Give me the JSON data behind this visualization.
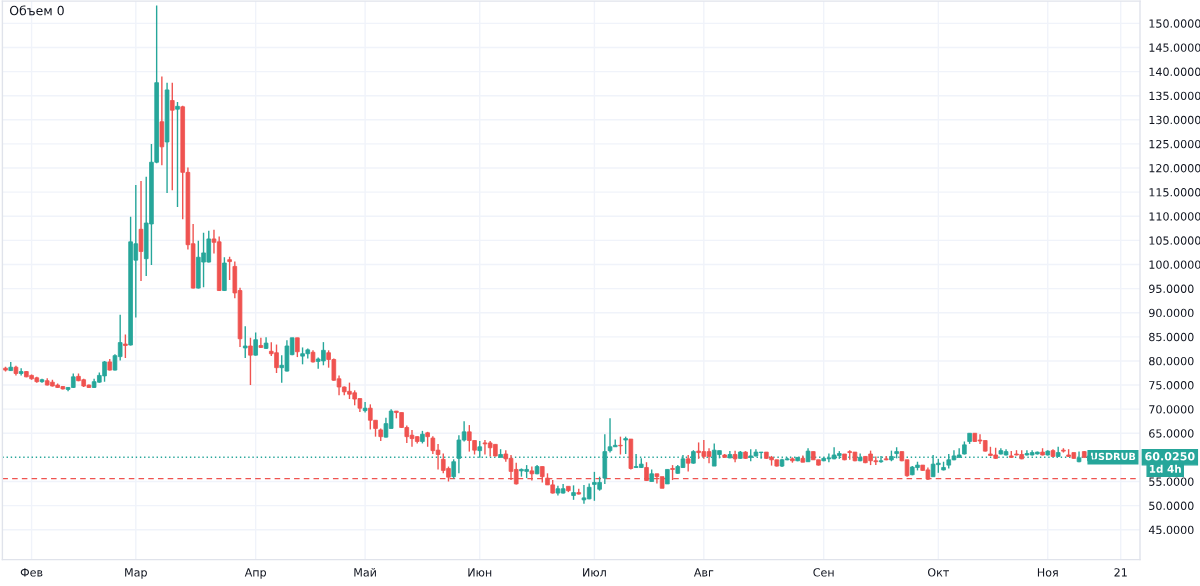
{
  "chart_data": {
    "type": "candlestick",
    "categories": [
      null,
      null,
      null,
      null,
      null,
      "Фев",
      null,
      null,
      null,
      null,
      null,
      null,
      null,
      null,
      null,
      null,
      null,
      null,
      null,
      null,
      null,
      null,
      null,
      null,
      null,
      "Мар",
      null,
      null,
      null,
      null,
      null,
      null,
      null,
      null,
      null,
      null,
      null,
      null,
      null,
      null,
      null,
      null,
      null,
      null,
      null,
      null,
      null,
      null,
      "Апр",
      null,
      null,
      null,
      null,
      null,
      null,
      null,
      null,
      null,
      null,
      null,
      null,
      null,
      null,
      null,
      null,
      null,
      null,
      null,
      null,
      "Май",
      null,
      null,
      null,
      null,
      null,
      null,
      null,
      null,
      null,
      null,
      null,
      null,
      null,
      null,
      null,
      null,
      null,
      null,
      null,
      null,
      null,
      "Июн",
      null,
      null,
      null,
      null,
      null,
      null,
      null,
      null,
      null,
      null,
      null,
      null,
      null,
      null,
      null,
      null,
      null,
      null,
      null,
      null,
      null,
      "Июл",
      null,
      null,
      null,
      null,
      null,
      null,
      null,
      null,
      null,
      null,
      null,
      null,
      null,
      null,
      null,
      null,
      null,
      null,
      null,
      null,
      "Авг",
      null,
      null,
      null,
      null,
      null,
      null,
      null,
      null,
      null,
      null,
      null,
      null,
      null,
      null,
      null,
      null,
      null,
      null,
      null,
      null,
      null,
      null,
      "Сен",
      null,
      null,
      null,
      null,
      null,
      null,
      null,
      null,
      null,
      null,
      null,
      null,
      null,
      null,
      null,
      null,
      null,
      null,
      null,
      null,
      null,
      "Окт",
      null,
      null,
      null,
      null,
      null,
      null,
      null,
      null,
      null,
      null,
      null,
      null,
      null,
      null,
      null,
      null,
      null,
      null,
      null,
      null,
      "Ноя",
      null,
      null,
      null,
      null,
      null,
      null,
      null,
      null,
      null,
      null,
      null,
      null,
      null,
      "21"
    ],
    "ohlc": [
      [
        78.5,
        78.8,
        77.8,
        78.1
      ],
      [
        78.0,
        79.8,
        77.9,
        78.7
      ],
      [
        78.7,
        79.0,
        77.0,
        77.4
      ],
      [
        77.4,
        78.5,
        77.0,
        77.8
      ],
      [
        77.8,
        77.9,
        76.6,
        76.7
      ],
      [
        77.0,
        77.2,
        76.1,
        76.3
      ],
      [
        76.5,
        76.7,
        75.5,
        75.7
      ],
      [
        75.7,
        76.3,
        75.5,
        76.1
      ],
      [
        75.9,
        76.4,
        74.9,
        75.0
      ],
      [
        75.6,
        76.1,
        74.7,
        74.8
      ],
      [
        75.0,
        75.3,
        74.4,
        74.5
      ],
      [
        74.7,
        74.8,
        74.1,
        74.2
      ],
      [
        74.1,
        74.6,
        73.7,
        74.5
      ],
      [
        74.5,
        77.4,
        74.4,
        76.7
      ],
      [
        76.8,
        77.4,
        75.8,
        75.9
      ],
      [
        76.1,
        76.3,
        74.6,
        74.8
      ],
      [
        75.0,
        75.1,
        74.4,
        74.5
      ],
      [
        74.5,
        76.3,
        74.4,
        75.7
      ],
      [
        75.6,
        77.6,
        75.5,
        77.0
      ],
      [
        76.9,
        80.0,
        75.7,
        79.8
      ],
      [
        79.8,
        80.4,
        78.0,
        78.1
      ],
      [
        78.1,
        81.4,
        78.0,
        81.1
      ],
      [
        80.9,
        89.6,
        80.1,
        83.8
      ],
      [
        83.5,
        85.5,
        80.6,
        83.2
      ],
      [
        83.3,
        109.9,
        83.2,
        104.7
      ],
      [
        100.9,
        116.5,
        89.0,
        104.3
      ],
      [
        107.3,
        117.3,
        96.6,
        102.7
      ],
      [
        101.2,
        118.2,
        97.6,
        108.6
      ],
      [
        108.4,
        125.0,
        99.9,
        121.2
      ],
      [
        121.2,
        153.7,
        121.0,
        137.7
      ],
      [
        129.6,
        139.0,
        120.6,
        124.4
      ],
      [
        125.4,
        137.7,
        114.8,
        136.2
      ],
      [
        134.0,
        137.7,
        115.4,
        132.0
      ],
      [
        132.2,
        133.7,
        111.9,
        132.8
      ],
      [
        132.7,
        132.9,
        109.4,
        119.1
      ],
      [
        119.1,
        120.1,
        103.1,
        104.1
      ],
      [
        104.3,
        108.4,
        95.0,
        95.1
      ],
      [
        95.1,
        104.9,
        95.0,
        101.5
      ],
      [
        100.5,
        106.6,
        95.3,
        102.4
      ],
      [
        100.5,
        107.0,
        100.4,
        105.3
      ],
      [
        105.3,
        107.2,
        102.3,
        104.6
      ],
      [
        104.7,
        105.8,
        94.5,
        94.6
      ],
      [
        94.6,
        101.5,
        94.5,
        100.3
      ],
      [
        101.0,
        101.6,
        96.8,
        100.6
      ],
      [
        99.6,
        100.6,
        93.0,
        94.1
      ],
      [
        94.6,
        95.2,
        82.9,
        84.6
      ],
      [
        82.7,
        87.2,
        80.6,
        83.1
      ],
      [
        83.1,
        84.8,
        75.0,
        81.2
      ],
      [
        81.2,
        85.9,
        81.1,
        84.4
      ],
      [
        83.2,
        84.8,
        82.7,
        82.8
      ],
      [
        82.6,
        84.9,
        82.5,
        83.7
      ],
      [
        82.0,
        83.9,
        81.0,
        81.5
      ],
      [
        81.7,
        83.4,
        77.5,
        78.6
      ],
      [
        78.6,
        81.2,
        75.5,
        79.1
      ],
      [
        77.9,
        84.3,
        77.8,
        83.1
      ],
      [
        81.3,
        84.8,
        81.2,
        84.8
      ],
      [
        84.8,
        84.8,
        80.8,
        81.9
      ],
      [
        81.0,
        82.8,
        79.3,
        81.5
      ],
      [
        81.5,
        82.6,
        80.5,
        82.3
      ],
      [
        81.8,
        82.2,
        79.7,
        79.8
      ],
      [
        79.9,
        80.7,
        78.4,
        80.4
      ],
      [
        80.0,
        83.9,
        79.1,
        82.2
      ],
      [
        81.7,
        82.2,
        78.6,
        80.3
      ],
      [
        80.3,
        80.5,
        75.9,
        76.0
      ],
      [
        76.3,
        77.0,
        72.9,
        74.6
      ],
      [
        74.6,
        74.7,
        72.9,
        73.6
      ],
      [
        73.7,
        75.5,
        72.1,
        73.1
      ],
      [
        73.4,
        73.9,
        70.8,
        72.1
      ],
      [
        72.2,
        72.2,
        69.4,
        70.2
      ],
      [
        69.7,
        71.5,
        69.3,
        70.2
      ],
      [
        70.2,
        71.0,
        65.8,
        67.7
      ],
      [
        67.7,
        67.7,
        64.3,
        66.0
      ],
      [
        65.7,
        66.0,
        63.4,
        64.3
      ],
      [
        64.2,
        68.2,
        64.1,
        67.0
      ],
      [
        66.0,
        70.0,
        66.0,
        69.6
      ],
      [
        69.6,
        69.6,
        68.1,
        69.3
      ],
      [
        69.3,
        69.3,
        66.1,
        66.2
      ],
      [
        66.2,
        66.6,
        63.0,
        64.3
      ],
      [
        64.6,
        65.7,
        62.2,
        63.9
      ],
      [
        64.3,
        64.4,
        62.9,
        63.3
      ],
      [
        63.3,
        65.5,
        62.9,
        64.8
      ],
      [
        65.1,
        65.3,
        62.2,
        64.3
      ],
      [
        64.0,
        64.4,
        60.7,
        61.4
      ],
      [
        61.5,
        62.8,
        57.5,
        60.6
      ],
      [
        59.6,
        60.8,
        56.7,
        57.3
      ],
      [
        57.7,
        58.1,
        55.0,
        55.9
      ],
      [
        56.0,
        59.6,
        55.6,
        59.1
      ],
      [
        59.8,
        64.6,
        56.7,
        63.6
      ],
      [
        63.6,
        67.5,
        63.3,
        65.3
      ],
      [
        65.3,
        66.7,
        61.2,
        63.5
      ],
      [
        63.5,
        63.5,
        60.6,
        61.5
      ],
      [
        61.4,
        63.4,
        59.9,
        62.2
      ],
      [
        63.0,
        63.6,
        60.6,
        62.8
      ],
      [
        63.0,
        63.4,
        60.2,
        62.0
      ],
      [
        62.7,
        62.7,
        60.2,
        60.3
      ],
      [
        60.0,
        61.7,
        60.0,
        60.6
      ],
      [
        60.7,
        61.5,
        59.1,
        59.7
      ],
      [
        59.8,
        60.5,
        55.3,
        57.1
      ],
      [
        57.5,
        58.9,
        54.4,
        54.5
      ],
      [
        57.2,
        57.7,
        56.0,
        57.5
      ],
      [
        57.1,
        58.4,
        55.7,
        57.5
      ],
      [
        57.2,
        58.1,
        55.2,
        56.6
      ],
      [
        56.6,
        58.4,
        56.5,
        58.1
      ],
      [
        58.1,
        58.1,
        54.8,
        56.0
      ],
      [
        55.7,
        56.7,
        54.3,
        54.3
      ],
      [
        54.3,
        55.3,
        52.5,
        52.6
      ],
      [
        52.6,
        54.1,
        52.1,
        53.5
      ],
      [
        52.6,
        54.5,
        52.5,
        53.5
      ],
      [
        54.0,
        54.0,
        52.8,
        53.1
      ],
      [
        52.1,
        54.2,
        51.2,
        52.7
      ],
      [
        52.7,
        53.5,
        52.3,
        52.4
      ],
      [
        51.2,
        54.3,
        50.4,
        51.6
      ],
      [
        51.4,
        54.6,
        51.3,
        53.8
      ],
      [
        54.4,
        57.0,
        51.0,
        54.8
      ],
      [
        53.4,
        56.0,
        53.1,
        54.8
      ],
      [
        55.7,
        64.8,
        54.5,
        61.2
      ],
      [
        61.4,
        68.1,
        61.0,
        62.2
      ],
      [
        62.2,
        63.7,
        62.2,
        62.5
      ],
      [
        62.5,
        64.3,
        60.6,
        62.4
      ],
      [
        63.6,
        64.3,
        60.7,
        63.9
      ],
      [
        63.8,
        63.8,
        57.5,
        57.7
      ],
      [
        57.9,
        60.7,
        57.8,
        58.1
      ],
      [
        57.9,
        59.8,
        57.8,
        58.6
      ],
      [
        57.9,
        59.0,
        55.1,
        55.2
      ],
      [
        55.0,
        57.5,
        55.0,
        56.6
      ],
      [
        56.6,
        56.6,
        54.6,
        56.0
      ],
      [
        56.0,
        56.0,
        53.6,
        53.6
      ],
      [
        54.5,
        57.5,
        54.5,
        57.5
      ],
      [
        57.7,
        58.4,
        55.3,
        57.5
      ],
      [
        56.7,
        58.4,
        56.6,
        58.1
      ],
      [
        57.9,
        60.5,
        57.8,
        59.7
      ],
      [
        59.7,
        60.5,
        57.1,
        58.8
      ],
      [
        58.8,
        61.5,
        58.7,
        61.2
      ],
      [
        61.3,
        63.1,
        59.7,
        61.0
      ],
      [
        61.2,
        63.6,
        59.7,
        60.2
      ],
      [
        61.2,
        61.9,
        58.8,
        60.2
      ],
      [
        58.2,
        62.9,
        58.2,
        61.5
      ],
      [
        60.6,
        61.4,
        59.8,
        61.4
      ],
      [
        60.5,
        60.7,
        60.0,
        60.0
      ],
      [
        59.9,
        61.3,
        59.8,
        60.6
      ],
      [
        60.6,
        61.4,
        59.0,
        59.7
      ],
      [
        59.8,
        61.3,
        59.7,
        61.1
      ],
      [
        61.1,
        61.3,
        59.7,
        59.8
      ],
      [
        60.0,
        61.7,
        59.2,
        60.3
      ],
      [
        60.3,
        61.7,
        60.2,
        61.1
      ],
      [
        61.0,
        61.1,
        59.7,
        61.1
      ],
      [
        61.1,
        61.1,
        59.7,
        59.8
      ],
      [
        60.0,
        60.3,
        58.3,
        59.5
      ],
      [
        59.5,
        59.5,
        58.1,
        58.2
      ],
      [
        58.2,
        59.7,
        58.0,
        59.5
      ],
      [
        59.5,
        60.0,
        59.4,
        59.7
      ],
      [
        59.7,
        60.0,
        58.9,
        59.3
      ],
      [
        59.3,
        60.0,
        59.2,
        60.0
      ],
      [
        59.8,
        60.4,
        59.0,
        59.0
      ],
      [
        59.1,
        61.9,
        59.1,
        61.3
      ],
      [
        61.2,
        61.2,
        59.5,
        59.5
      ],
      [
        59.5,
        59.5,
        58.3,
        58.4
      ],
      [
        59.3,
        60.0,
        59.2,
        59.8
      ],
      [
        59.7,
        60.8,
        59.0,
        59.9
      ],
      [
        59.7,
        62.1,
        59.6,
        60.5
      ],
      [
        60.4,
        61.3,
        59.7,
        60.8
      ],
      [
        60.7,
        60.7,
        59.4,
        59.5
      ],
      [
        61.2,
        61.5,
        59.5,
        61.0
      ],
      [
        61.1,
        61.1,
        59.2,
        59.3
      ],
      [
        59.3,
        60.8,
        59.2,
        60.0
      ],
      [
        60.2,
        60.2,
        58.8,
        58.9
      ],
      [
        60.7,
        61.4,
        58.4,
        59.3
      ],
      [
        59.3,
        60.2,
        58.4,
        59.1
      ],
      [
        59.1,
        60.3,
        58.9,
        59.3
      ],
      [
        59.7,
        60.3,
        59.4,
        59.5
      ],
      [
        59.5,
        61.4,
        59.2,
        60.2
      ],
      [
        60.8,
        62.1,
        59.8,
        61.2
      ],
      [
        61.2,
        61.2,
        59.2,
        59.3
      ],
      [
        59.5,
        59.5,
        56.0,
        56.2
      ],
      [
        56.4,
        58.2,
        56.3,
        58.0
      ],
      [
        57.9,
        59.1,
        57.3,
        58.4
      ],
      [
        58.4,
        58.4,
        57.2,
        57.3
      ],
      [
        57.4,
        57.9,
        55.3,
        55.5
      ],
      [
        56.0,
        60.5,
        56.0,
        58.6
      ],
      [
        58.5,
        59.7,
        56.8,
        58.8
      ],
      [
        57.4,
        59.1,
        57.3,
        57.9
      ],
      [
        58.4,
        60.7,
        57.7,
        59.5
      ],
      [
        59.5,
        61.5,
        59.4,
        60.3
      ],
      [
        60.0,
        61.9,
        59.9,
        60.5
      ],
      [
        60.7,
        63.3,
        60.6,
        62.6
      ],
      [
        63.3,
        65.0,
        62.8,
        65.0
      ],
      [
        65.0,
        65.0,
        63.2,
        63.3
      ],
      [
        63.6,
        64.8,
        62.8,
        63.4
      ],
      [
        63.5,
        63.5,
        61.2,
        61.3
      ],
      [
        60.7,
        62.2,
        60.3,
        60.4
      ],
      [
        60.5,
        62.0,
        59.7,
        59.8
      ],
      [
        60.7,
        61.9,
        60.6,
        61.4
      ],
      [
        60.5,
        61.7,
        60.4,
        61.2
      ],
      [
        60.3,
        61.3,
        59.9,
        60.0
      ],
      [
        60.7,
        61.5,
        60.4,
        60.5
      ],
      [
        60.6,
        61.5,
        59.6,
        59.7
      ],
      [
        60.5,
        61.5,
        60.4,
        60.8
      ],
      [
        60.5,
        61.5,
        60.4,
        61.0
      ],
      [
        60.7,
        61.2,
        60.6,
        61.1
      ],
      [
        61.1,
        61.9,
        60.4,
        60.5
      ],
      [
        60.5,
        61.5,
        60.4,
        61.3
      ],
      [
        61.4,
        61.7,
        60.1,
        60.2
      ],
      [
        60.2,
        62.2,
        60.1,
        61.0
      ],
      [
        61.5,
        61.9,
        61.0,
        61.3
      ],
      [
        60.5,
        61.7,
        60.1,
        60.2
      ],
      [
        61.0,
        61.0,
        59.7,
        59.8
      ],
      [
        59.1,
        61.2,
        59.0,
        59.9
      ],
      [
        61.2,
        61.3,
        59.9,
        60.0
      ],
      [
        59.3,
        60.3,
        59.2,
        60.3
      ],
      [
        59.1,
        59.5,
        59.0,
        59.5
      ],
      null,
      null,
      null,
      null,
      null
    ],
    "ylim": [
      38.8,
      154.6
    ],
    "yticks": [
      {
        "value": 45,
        "label": "45.0000"
      },
      {
        "value": 50,
        "label": "50.0000"
      },
      {
        "value": 55,
        "label": "55.0000"
      },
      {
        "value": 65,
        "label": "65.0000"
      },
      {
        "value": 70,
        "label": "70.0000"
      },
      {
        "value": 75,
        "label": "75.0000"
      },
      {
        "value": 80,
        "label": "80.0000"
      },
      {
        "value": 85,
        "label": "85.0000"
      },
      {
        "value": 90,
        "label": "90.0000"
      },
      {
        "value": 95,
        "label": "95.0000"
      },
      {
        "value": 100,
        "label": "100.0000"
      },
      {
        "value": 105,
        "label": "105.0000"
      },
      {
        "value": 110,
        "label": "110.0000"
      },
      {
        "value": 115,
        "label": "115.0000"
      },
      {
        "value": 120,
        "label": "120.0000"
      },
      {
        "value": 125,
        "label": "125.0000"
      },
      {
        "value": 130,
        "label": "130.0000"
      },
      {
        "value": 135,
        "label": "135.0000"
      },
      {
        "value": 140,
        "label": "140.0000"
      },
      {
        "value": 145,
        "label": "145.0000"
      },
      {
        "value": 150,
        "label": "150.0000"
      }
    ],
    "grid": true,
    "ref_lines": [
      {
        "axis": "y",
        "value": 60.025,
        "label": "60.0250",
        "color": "#26a69a",
        "line_style": "dotted"
      },
      {
        "axis": "y",
        "value": 55.6,
        "color": "#ef5350",
        "line_style": "dashed"
      }
    ],
    "annotations": [
      "Объем 0",
      {
        "text": "USDRUB",
        "y": 60.025
      },
      "1d 4h"
    ]
  }
}
